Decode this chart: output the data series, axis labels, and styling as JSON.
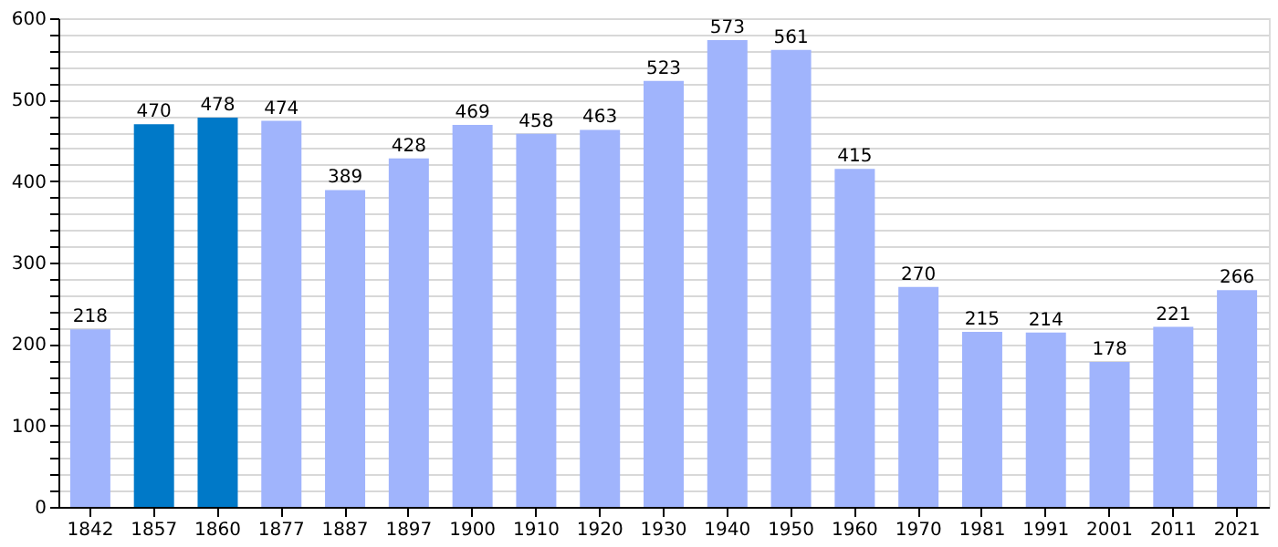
{
  "chart_data": {
    "type": "bar",
    "categories": [
      "1842",
      "1857",
      "1860",
      "1877",
      "1887",
      "1897",
      "1900",
      "1910",
      "1920",
      "1930",
      "1940",
      "1950",
      "1960",
      "1970",
      "1981",
      "1991",
      "2001",
      "2011",
      "2021"
    ],
    "values": [
      218,
      470,
      478,
      474,
      389,
      428,
      469,
      458,
      463,
      523,
      573,
      561,
      415,
      270,
      215,
      214,
      178,
      221,
      266
    ],
    "colors": [
      "#a0b4fc",
      "#0079c8",
      "#0079c8",
      "#a0b4fc",
      "#a0b4fc",
      "#a0b4fc",
      "#a0b4fc",
      "#a0b4fc",
      "#a0b4fc",
      "#a0b4fc",
      "#a0b4fc",
      "#a0b4fc",
      "#a0b4fc",
      "#a0b4fc",
      "#a0b4fc",
      "#a0b4fc",
      "#a0b4fc",
      "#a0b4fc",
      "#a0b4fc"
    ],
    "ylim": [
      0,
      600
    ],
    "yticks": [
      0,
      {
        "value": 20,
        "label": null
      },
      {
        "value": 40,
        "label": null
      },
      {
        "value": 60,
        "label": null
      },
      {
        "value": 80,
        "label": null
      },
      100,
      {
        "value": 120,
        "label": null
      },
      {
        "value": 140,
        "label": null
      },
      {
        "value": 160,
        "label": null
      },
      {
        "value": 180,
        "label": null
      },
      200,
      {
        "value": 220,
        "label": null
      },
      {
        "value": 240,
        "label": null
      },
      {
        "value": 260,
        "label": null
      },
      {
        "value": 280,
        "label": null
      },
      300,
      {
        "value": 320,
        "label": null
      },
      {
        "value": 340,
        "label": null
      },
      {
        "value": 360,
        "label": null
      },
      {
        "value": 380,
        "label": null
      },
      400,
      {
        "value": 420,
        "label": null
      },
      {
        "value": 440,
        "label": null
      },
      {
        "value": 460,
        "label": null
      },
      {
        "value": 480,
        "label": null
      },
      500,
      {
        "value": 520,
        "label": null
      },
      {
        "value": 540,
        "label": null
      },
      {
        "value": 560,
        "label": null
      },
      {
        "value": 580,
        "label": null
      },
      600
    ],
    "grid": "y",
    "data_labels": true
  }
}
